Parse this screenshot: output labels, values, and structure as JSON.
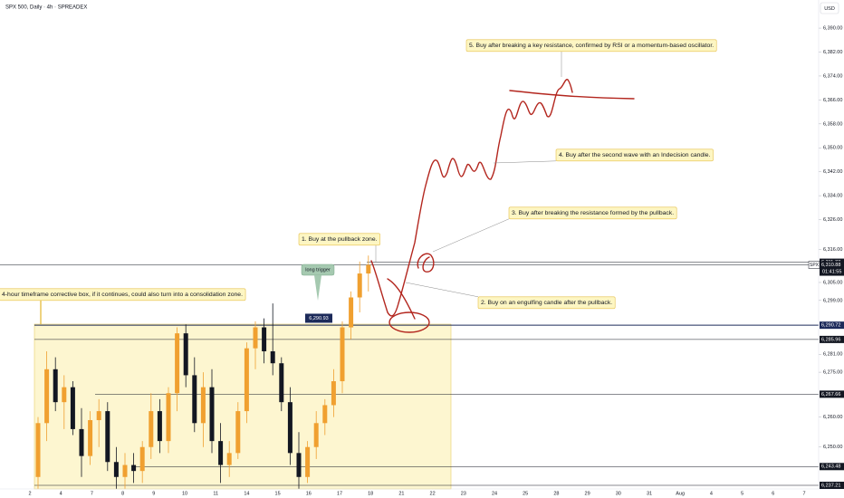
{
  "header": {
    "symbol": "SPX 500, Daily · 4h · SPREADEX",
    "currency": "USD"
  },
  "price_axis": {
    "ylim": [
      6236,
      6399.4
    ],
    "ticks": [
      {
        "value": 6390,
        "label": "6,390.00"
      },
      {
        "value": 6382,
        "label": "6,382.00"
      },
      {
        "value": 6374,
        "label": "6,374.00"
      },
      {
        "value": 6366,
        "label": "6,366.00"
      },
      {
        "value": 6358,
        "label": "6,358.00"
      },
      {
        "value": 6350,
        "label": "6,350.00"
      },
      {
        "value": 6342,
        "label": "6,342.00"
      },
      {
        "value": 6334,
        "label": "6,334.00"
      },
      {
        "value": 6326,
        "label": "6,326.00"
      },
      {
        "value": 6316,
        "label": "6,316.00"
      },
      {
        "value": 6305,
        "label": "6,305.00"
      },
      {
        "value": 6299,
        "label": "6,299.00"
      },
      {
        "value": 6281,
        "label": "6,281.00"
      },
      {
        "value": 6275,
        "label": "6,275.00"
      },
      {
        "value": 6260,
        "label": "6,260.00"
      },
      {
        "value": 6250,
        "label": "6,250.00"
      }
    ]
  },
  "price_tags": [
    {
      "value": 6311.77,
      "label": "6,311.77",
      "color": "#131722"
    },
    {
      "value": 6310.88,
      "label": "6,310.88",
      "symbol": "SPX",
      "timer": "01:41:55",
      "color": "#131722"
    },
    {
      "value": 6290.72,
      "label": "6,290.72",
      "color": "#1c2a5a"
    },
    {
      "value": 6285.96,
      "label": "6,285.96",
      "color": "#131722"
    },
    {
      "value": 6267.66,
      "label": "6,267.66",
      "color": "#131722"
    },
    {
      "value": 6243.48,
      "label": "6,243.48",
      "color": "#131722"
    },
    {
      "value": 6237.21,
      "label": "6,237.21",
      "color": "#131722"
    }
  ],
  "date_axis": {
    "labels": [
      "2",
      "4",
      "7",
      "8",
      "9",
      "10",
      "11",
      "14",
      "15",
      "16",
      "17",
      "18",
      "21",
      "22",
      "23",
      "24",
      "25",
      "28",
      "29",
      "30",
      "31",
      "Aug",
      "4",
      "5",
      "6",
      "7"
    ]
  },
  "candle_colors": {
    "up": "#f0a030",
    "down": "#131722"
  },
  "candles": [
    {
      "o": 6240,
      "h": 6260,
      "l": 6236,
      "c": 6258
    },
    {
      "o": 6258,
      "h": 6282,
      "l": 6252,
      "c": 6276
    },
    {
      "o": 6276,
      "h": 6280,
      "l": 6262,
      "c": 6265
    },
    {
      "o": 6265,
      "h": 6274,
      "l": 6256,
      "c": 6270
    },
    {
      "o": 6270,
      "h": 6272,
      "l": 6254,
      "c": 6256
    },
    {
      "o": 6256,
      "h": 6263,
      "l": 6240,
      "c": 6247
    },
    {
      "o": 6247,
      "h": 6262,
      "l": 6244,
      "c": 6259
    },
    {
      "o": 6259,
      "h": 6266,
      "l": 6250,
      "c": 6262
    },
    {
      "o": 6262,
      "h": 6265,
      "l": 6242,
      "c": 6245
    },
    {
      "o": 6245,
      "h": 6250,
      "l": 6236,
      "c": 6240
    },
    {
      "o": 6240,
      "h": 6248,
      "l": 6236,
      "c": 6244
    },
    {
      "o": 6244,
      "h": 6248,
      "l": 6238,
      "c": 6242
    },
    {
      "o": 6242,
      "h": 6252,
      "l": 6238,
      "c": 6250
    },
    {
      "o": 6250,
      "h": 6268,
      "l": 6246,
      "c": 6262
    },
    {
      "o": 6262,
      "h": 6266,
      "l": 6248,
      "c": 6252
    },
    {
      "o": 6252,
      "h": 6270,
      "l": 6248,
      "c": 6268
    },
    {
      "o": 6268,
      "h": 6290,
      "l": 6262,
      "c": 6288
    },
    {
      "o": 6288,
      "h": 6291,
      "l": 6270,
      "c": 6274
    },
    {
      "o": 6274,
      "h": 6280,
      "l": 6255,
      "c": 6258
    },
    {
      "o": 6258,
      "h": 6275,
      "l": 6250,
      "c": 6270
    },
    {
      "o": 6270,
      "h": 6276,
      "l": 6248,
      "c": 6252
    },
    {
      "o": 6252,
      "h": 6258,
      "l": 6238,
      "c": 6244
    },
    {
      "o": 6244,
      "h": 6252,
      "l": 6240,
      "c": 6248
    },
    {
      "o": 6248,
      "h": 6265,
      "l": 6246,
      "c": 6262
    },
    {
      "o": 6262,
      "h": 6285,
      "l": 6258,
      "c": 6283
    },
    {
      "o": 6283,
      "h": 6292,
      "l": 6276,
      "c": 6290
    },
    {
      "o": 6290,
      "h": 6293,
      "l": 6278,
      "c": 6282
    },
    {
      "o": 6282,
      "h": 6298,
      "l": 6274,
      "c": 6278
    },
    {
      "o": 6278,
      "h": 6280,
      "l": 6262,
      "c": 6265
    },
    {
      "o": 6265,
      "h": 6270,
      "l": 6244,
      "c": 6248
    },
    {
      "o": 6248,
      "h": 6255,
      "l": 6236,
      "c": 6240
    },
    {
      "o": 6240,
      "h": 6252,
      "l": 6238,
      "c": 6250
    },
    {
      "o": 6250,
      "h": 6262,
      "l": 6246,
      "c": 6258
    },
    {
      "o": 6258,
      "h": 6266,
      "l": 6254,
      "c": 6264
    },
    {
      "o": 6264,
      "h": 6276,
      "l": 6260,
      "c": 6272
    },
    {
      "o": 6272,
      "h": 6292,
      "l": 6268,
      "c": 6290
    },
    {
      "o": 6290,
      "h": 6302,
      "l": 6286,
      "c": 6300
    },
    {
      "o": 6300,
      "h": 6312,
      "l": 6295,
      "c": 6308
    },
    {
      "o": 6308,
      "h": 6314,
      "l": 6302,
      "c": 6310.88
    }
  ],
  "trigger": {
    "label": "long trigger",
    "price": {
      "value": 6290.93,
      "label": "6,290.93"
    }
  },
  "annotations": [
    "5. Buy after breaking a key resistance, confirmed by RSI or a momentum-based oscillator.",
    "4. Buy after the second wave with an Indecision candle.",
    "3. Buy after breaking the resistance formed by the pullback.",
    "1. Buy at the pullback zone.",
    "2. Buy on an engulfing candle after the pullback.",
    "4-hour timeframe corrective box, if it continues, could also turn into a consolidation zone."
  ]
}
